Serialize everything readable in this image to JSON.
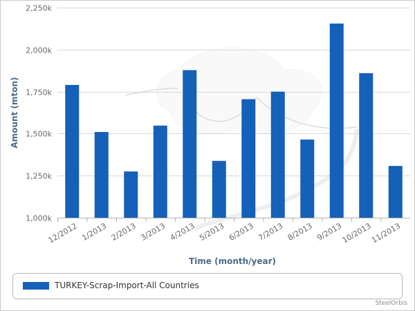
{
  "chart_data": {
    "type": "bar",
    "xlabel": "Time (month/year)",
    "ylabel": "Amount (mton)",
    "ylim": [
      1000000,
      2250000
    ],
    "yticks": [
      1000000,
      1250000,
      1500000,
      1750000,
      2000000,
      2250000
    ],
    "ytick_labels": [
      "1,000k",
      "1,250k",
      "1,500k",
      "1,750k",
      "2,000k",
      "2,250k"
    ],
    "grid": true,
    "legend_position": "bottom",
    "categories": [
      "12/2012",
      "1/2013",
      "2/2013",
      "3/2013",
      "4/2013",
      "5/2013",
      "6/2013",
      "7/2013",
      "8/2013",
      "9/2013",
      "10/2013",
      "11/2013"
    ],
    "series": [
      {
        "name": "TURKEY-Scrap-Import-All Countries",
        "color": "#1560b8",
        "values": [
          1790000,
          1510000,
          1275000,
          1548000,
          1878000,
          1338000,
          1705000,
          1750000,
          1465000,
          2155000,
          1860000,
          1308000
        ]
      }
    ]
  },
  "credit": "SteelOrbis"
}
